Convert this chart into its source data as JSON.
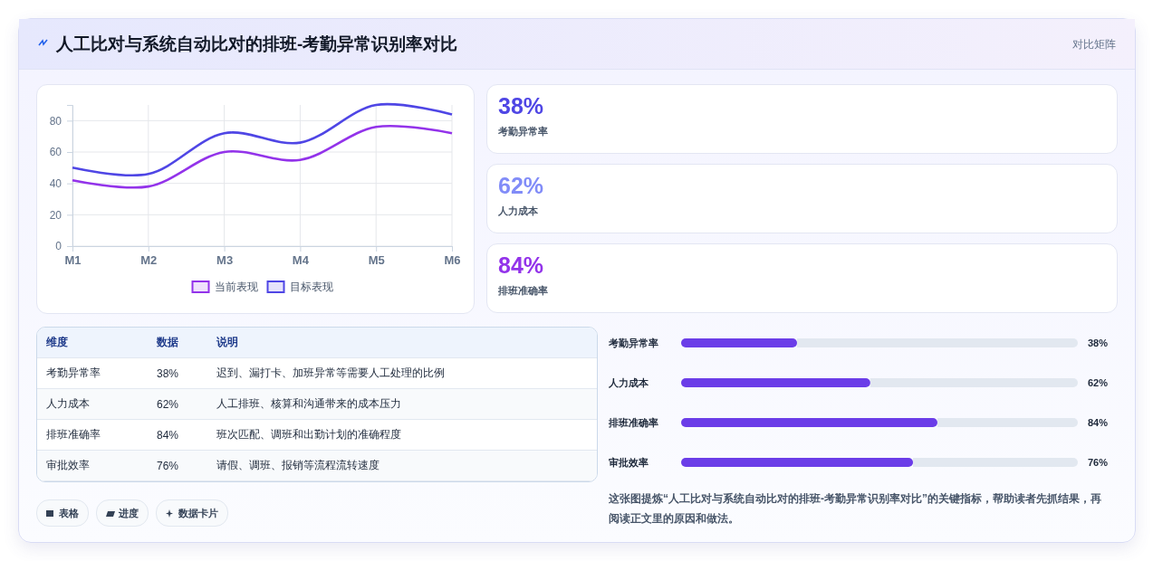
{
  "chart_data": [
    {
      "type": "line",
      "title": "人工比对与系统自动比对的排班-考勤异常识别率对比",
      "annotations": [
        "对比矩阵"
      ],
      "categories": [
        "M1",
        "M2",
        "M3",
        "M4",
        "M5",
        "M6"
      ],
      "series": [
        {
          "name": "当前表现",
          "color": "#9333ea",
          "values": [
            42,
            38,
            60,
            55,
            76,
            72
          ]
        },
        {
          "name": "目标表现",
          "color": "#4f46e5",
          "values": [
            50,
            46,
            72,
            66,
            90,
            84
          ]
        }
      ],
      "ylim": [
        0,
        90
      ],
      "yticks": [
        0,
        20,
        40,
        60,
        80
      ],
      "grid": true,
      "legend": "bottom"
    },
    {
      "type": "other",
      "categories": [
        "考勤异常率",
        "人力成本",
        "排班准确率"
      ],
      "value_labels": [
        "38%",
        "62%",
        "84%"
      ],
      "colors": [
        "#4f46e5",
        "#818cf8",
        "#9333ea"
      ]
    },
    {
      "type": "other",
      "annotations": [
        "维度",
        "数据",
        "说明",
        "迟到、漏打卡、加班异常等需要人工处理的比例",
        "人工排班、核算和沟通带来的成本压力",
        "班次匹配、调班和出勤计划的准确程度",
        "请假、调班、报销等流程流转速度",
        "表格",
        "进度",
        "数据卡片"
      ],
      "categories": [
        "考勤异常率",
        "人力成本",
        "排班准确率",
        "审批效率"
      ],
      "value_labels": [
        "38%",
        "62%",
        "84%",
        "76%"
      ]
    },
    {
      "type": "bar",
      "orientation": "horizontal",
      "categories": [
        "考勤异常率",
        "人力成本",
        "排班准确率",
        "审批效率"
      ],
      "values": [
        38,
        62,
        84,
        76
      ],
      "value_labels": [
        "38%",
        "62%",
        "84%",
        "76%"
      ],
      "color": "#6b3de8",
      "xlim": [
        0,
        130
      ],
      "tick_labels": "y",
      "annotations": [
        "这张图提炼“人工比对与系统自动比对的排班-考勤异常识别率对比”的关键指标，帮助读者先抓结果，再阅读正文里的原因和做法。"
      ]
    }
  ]
}
